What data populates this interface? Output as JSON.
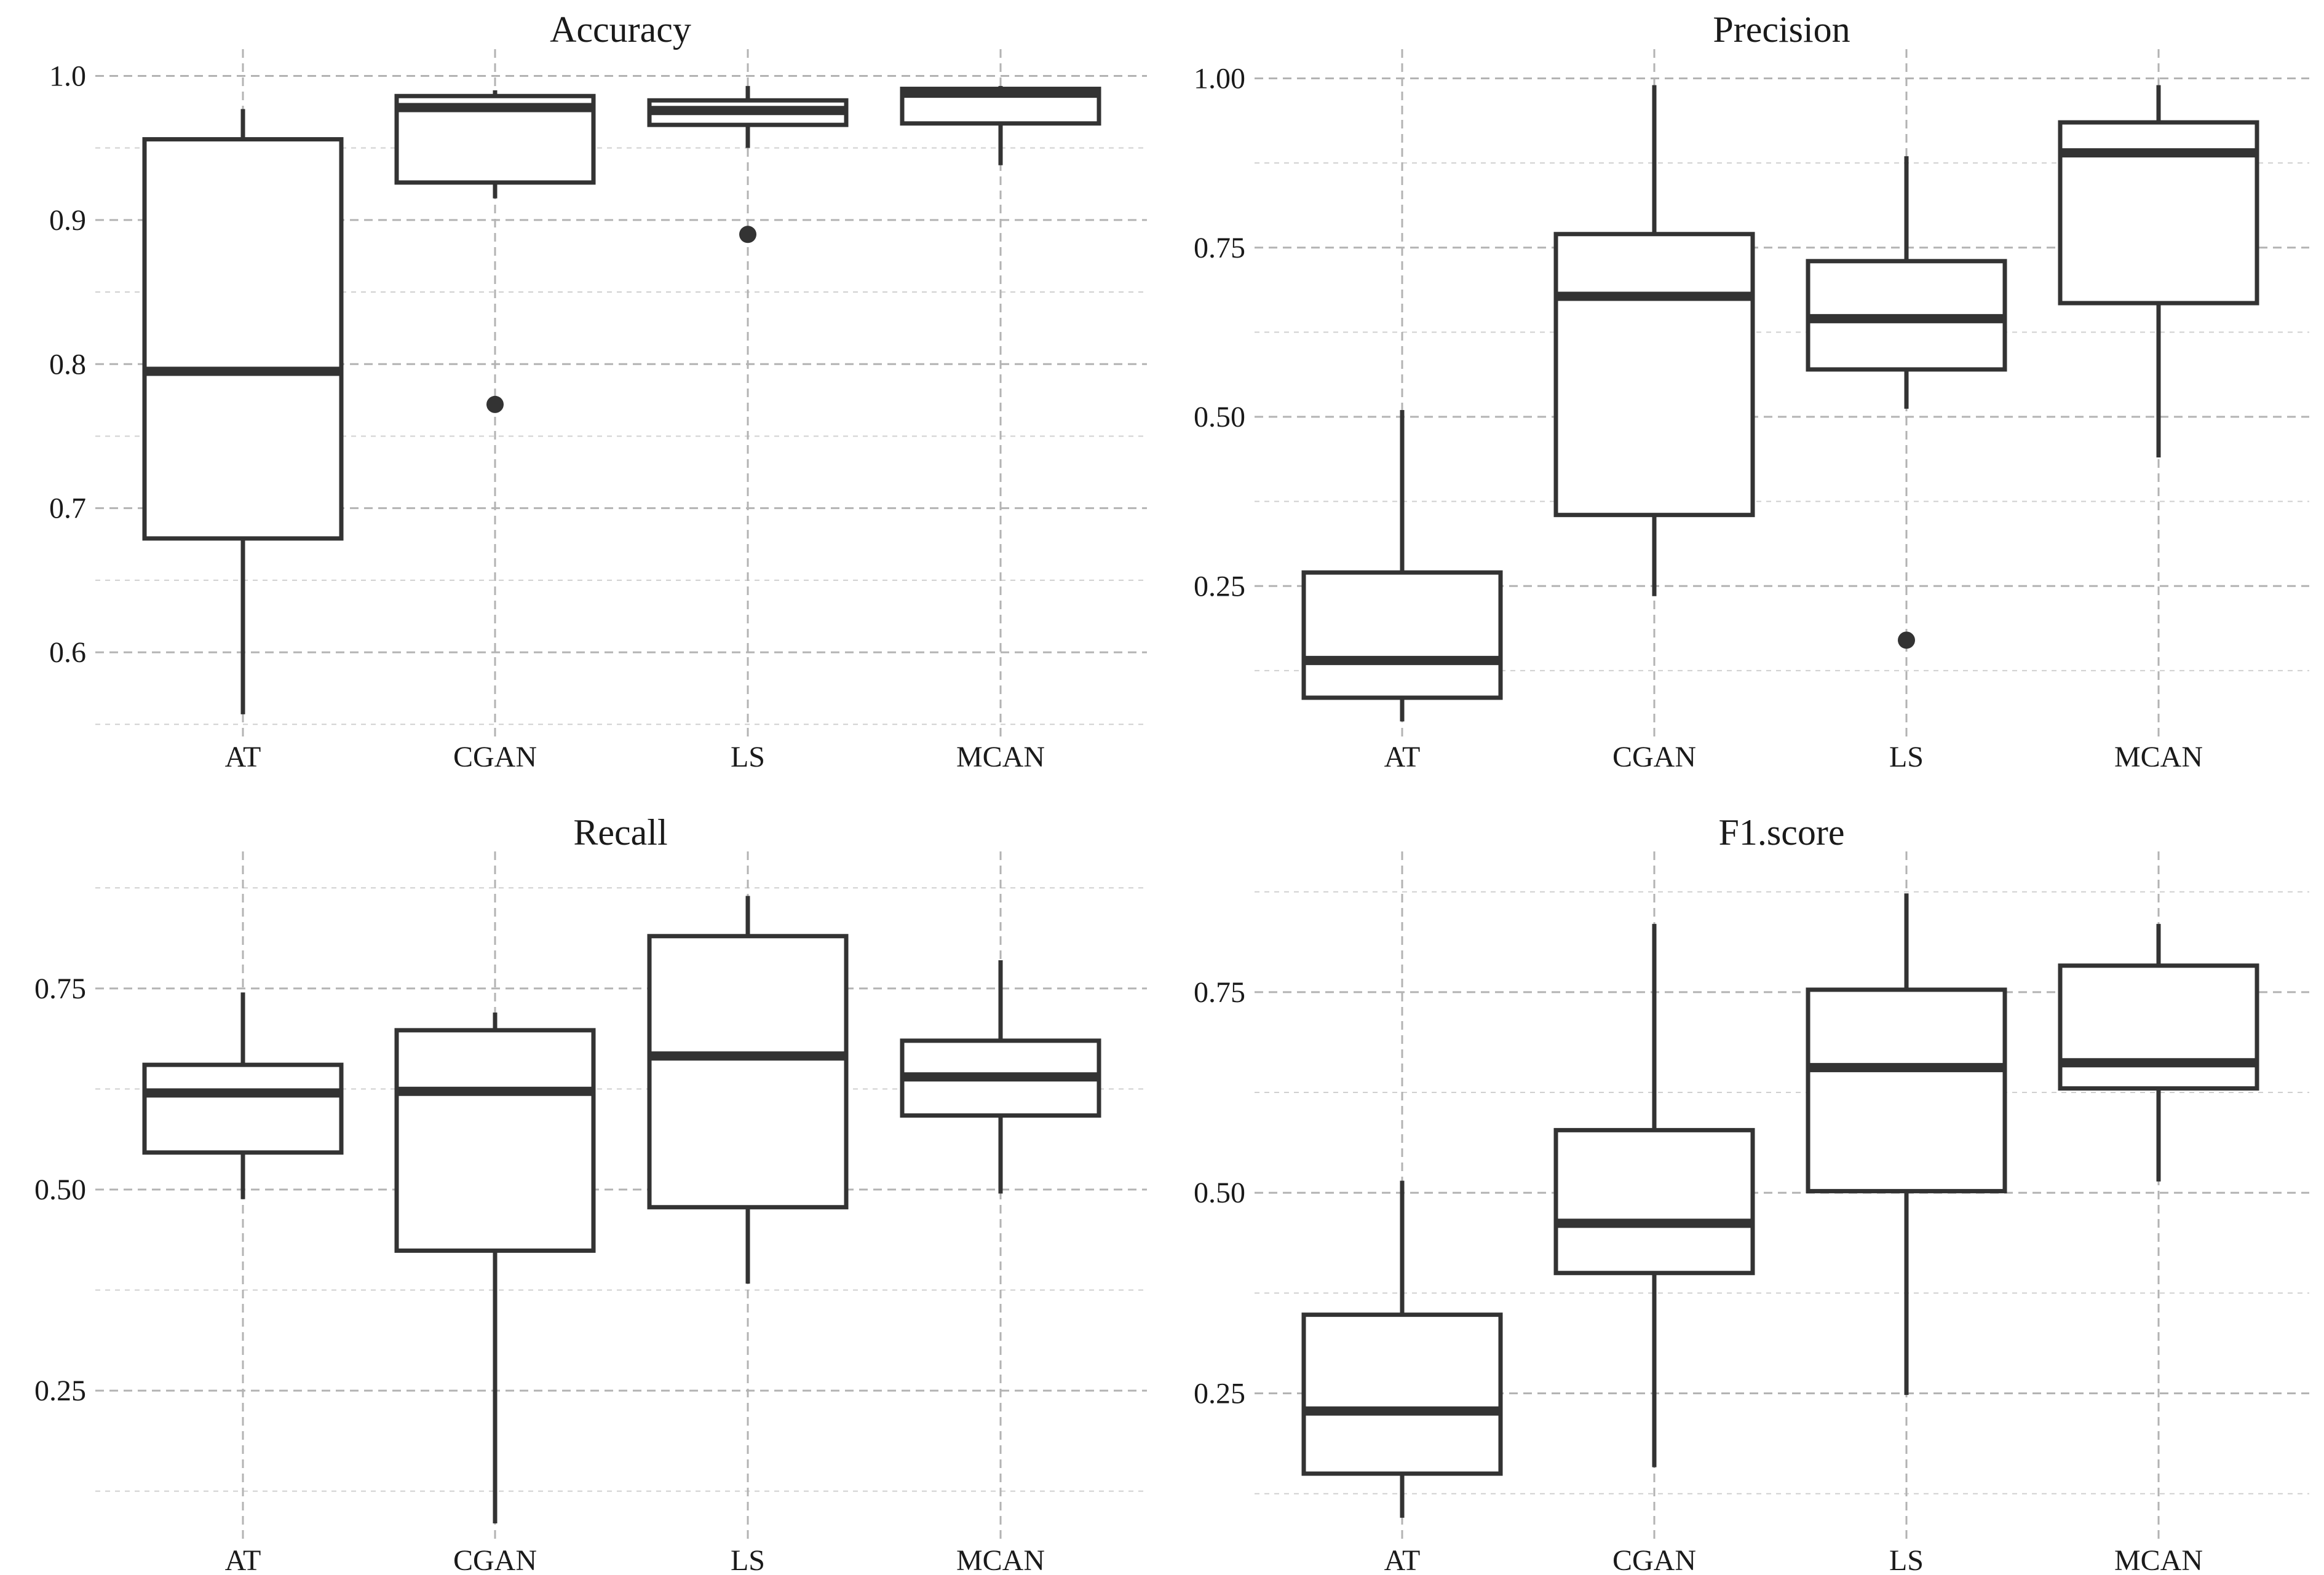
{
  "chart_data": [
    {
      "type": "box",
      "title": "Accuracy",
      "categories": [
        "AT",
        "CGAN",
        "LS",
        "MCAN"
      ],
      "ylim": [
        0.545,
        1.01
      ],
      "y_major_ticks": [
        0.6,
        0.7,
        0.8,
        0.9,
        1.0
      ],
      "y_minor_ticks": [
        0.55,
        0.65,
        0.75,
        0.85,
        0.95
      ],
      "y_tick_labels": [
        "0.6",
        "0.7",
        "0.8",
        "0.9",
        "1.0"
      ],
      "boxes": [
        {
          "category": "AT",
          "whisker_low": 0.557,
          "q1": 0.679,
          "median": 0.795,
          "q3": 0.956,
          "whisker_high": 0.977,
          "outliers": []
        },
        {
          "category": "CGAN",
          "whisker_low": 0.915,
          "q1": 0.926,
          "median": 0.978,
          "q3": 0.986,
          "whisker_high": 0.99,
          "outliers": [
            0.772
          ]
        },
        {
          "category": "LS",
          "whisker_low": 0.95,
          "q1": 0.966,
          "median": 0.976,
          "q3": 0.983,
          "whisker_high": 0.993,
          "outliers": [
            0.89
          ]
        },
        {
          "category": "MCAN",
          "whisker_low": 0.938,
          "q1": 0.967,
          "median": 0.988,
          "q3": 0.991,
          "whisker_high": 0.993,
          "outliers": []
        }
      ]
    },
    {
      "type": "box",
      "title": "Precision",
      "categories": [
        "AT",
        "CGAN",
        "LS",
        "MCAN"
      ],
      "ylim": [
        0.035,
        1.025
      ],
      "y_major_ticks": [
        0.25,
        0.5,
        0.75,
        1.0
      ],
      "y_minor_ticks": [
        0.125,
        0.375,
        0.625,
        0.875
      ],
      "y_tick_labels": [
        "0.25",
        "0.50",
        "0.75",
        "1.00"
      ],
      "boxes": [
        {
          "category": "AT",
          "whisker_low": 0.05,
          "q1": 0.085,
          "median": 0.14,
          "q3": 0.27,
          "whisker_high": 0.51,
          "outliers": []
        },
        {
          "category": "CGAN",
          "whisker_low": 0.235,
          "q1": 0.355,
          "median": 0.678,
          "q3": 0.77,
          "whisker_high": 0.99,
          "outliers": []
        },
        {
          "category": "LS",
          "whisker_low": 0.512,
          "q1": 0.57,
          "median": 0.645,
          "q3": 0.73,
          "whisker_high": 0.885,
          "outliers": [
            0.17
          ]
        },
        {
          "category": "MCAN",
          "whisker_low": 0.44,
          "q1": 0.668,
          "median": 0.89,
          "q3": 0.935,
          "whisker_high": 0.99,
          "outliers": []
        }
      ]
    },
    {
      "type": "box",
      "title": "Recall",
      "categories": [
        "AT",
        "CGAN",
        "LS",
        "MCAN"
      ],
      "ylim": [
        0.072,
        0.905
      ],
      "y_major_ticks": [
        0.25,
        0.5,
        0.75
      ],
      "y_minor_ticks": [
        0.125,
        0.375,
        0.625,
        0.875
      ],
      "y_tick_labels": [
        "0.25",
        "0.50",
        "0.75"
      ],
      "boxes": [
        {
          "category": "AT",
          "whisker_low": 0.488,
          "q1": 0.546,
          "median": 0.62,
          "q3": 0.655,
          "whisker_high": 0.745,
          "outliers": []
        },
        {
          "category": "CGAN",
          "whisker_low": 0.085,
          "q1": 0.424,
          "median": 0.622,
          "q3": 0.698,
          "whisker_high": 0.72,
          "outliers": []
        },
        {
          "category": "LS",
          "whisker_low": 0.383,
          "q1": 0.478,
          "median": 0.666,
          "q3": 0.815,
          "whisker_high": 0.865,
          "outliers": []
        },
        {
          "category": "MCAN",
          "whisker_low": 0.495,
          "q1": 0.592,
          "median": 0.64,
          "q3": 0.685,
          "whisker_high": 0.785,
          "outliers": []
        }
      ]
    },
    {
      "type": "box",
      "title": "F1.score",
      "categories": [
        "AT",
        "CGAN",
        "LS",
        "MCAN"
      ],
      "ylim": [
        0.075,
        0.91
      ],
      "y_major_ticks": [
        0.25,
        0.5,
        0.75
      ],
      "y_minor_ticks": [
        0.125,
        0.375,
        0.625,
        0.875
      ],
      "y_tick_labels": [
        "0.25",
        "0.50",
        "0.75"
      ],
      "boxes": [
        {
          "category": "AT",
          "whisker_low": 0.095,
          "q1": 0.15,
          "median": 0.228,
          "q3": 0.348,
          "whisker_high": 0.515,
          "outliers": []
        },
        {
          "category": "CGAN",
          "whisker_low": 0.158,
          "q1": 0.4,
          "median": 0.462,
          "q3": 0.578,
          "whisker_high": 0.835,
          "outliers": []
        },
        {
          "category": "LS",
          "whisker_low": 0.248,
          "q1": 0.502,
          "median": 0.656,
          "q3": 0.753,
          "whisker_high": 0.873,
          "outliers": []
        },
        {
          "category": "MCAN",
          "whisker_low": 0.514,
          "q1": 0.63,
          "median": 0.662,
          "q3": 0.783,
          "whisker_high": 0.835,
          "outliers": []
        }
      ]
    }
  ]
}
